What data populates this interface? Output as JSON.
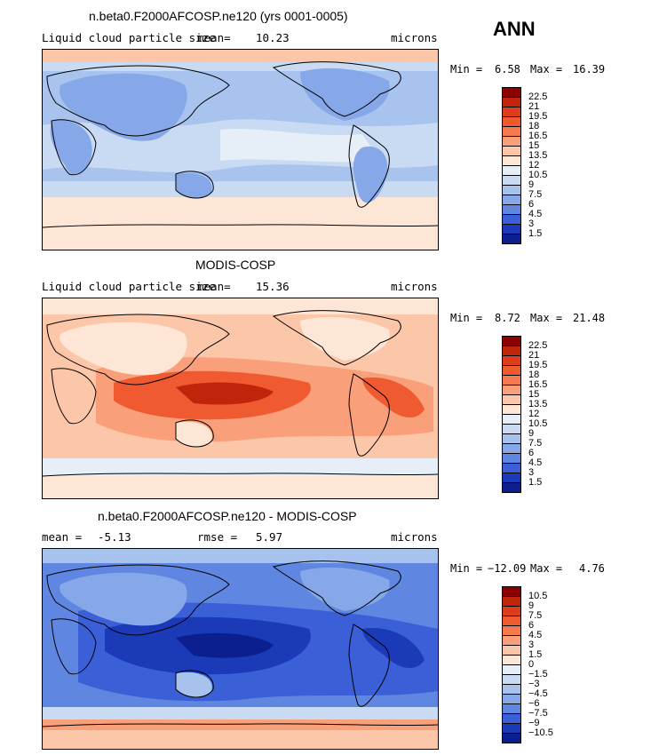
{
  "season": "ANN",
  "panels": [
    {
      "title": "n.beta0.F2000AFCOSP.ne120 (yrs 0001-0005)",
      "left_label": "Liquid cloud particle size",
      "mean_label": "mean=",
      "mean_value": "10.23",
      "units": "microns",
      "min_label": "Min =",
      "min_value": "6.58",
      "max_label": "Max =",
      "max_value": "16.39",
      "colorbar_levels": [
        "22.5",
        "21",
        "19.5",
        "18",
        "16.5",
        "15",
        "13.5",
        "12",
        "10.5",
        "9",
        "7.5",
        "6",
        "4.5",
        "3",
        "1.5"
      ],
      "colorbar_colors": [
        "#8b0000",
        "#c0250c",
        "#dd3d1c",
        "#ef5a30",
        "#f57a50",
        "#f9a07a",
        "#fcc6a8",
        "#fde6d6",
        "#e6eef8",
        "#c9daf3",
        "#a8c2ee",
        "#86a8e8",
        "#5f86e0",
        "#3a5fd6",
        "#1b3ab8",
        "#0c1f8f"
      ],
      "map_bg": "#a9c3ef"
    },
    {
      "title": "MODIS-COSP",
      "left_label": "Liquid cloud particle size",
      "mean_label": "mean=",
      "mean_value": "15.36",
      "units": "microns",
      "min_label": "Min =",
      "min_value": "8.72",
      "max_label": "Max =",
      "max_value": "21.48",
      "colorbar_levels": [
        "22.5",
        "21",
        "19.5",
        "18",
        "16.5",
        "15",
        "13.5",
        "12",
        "10.5",
        "9",
        "7.5",
        "6",
        "4.5",
        "3",
        "1.5"
      ],
      "colorbar_colors": [
        "#8b0000",
        "#c0250c",
        "#dd3d1c",
        "#ef5a30",
        "#f57a50",
        "#f9a07a",
        "#fcc6a8",
        "#fde6d6",
        "#e6eef8",
        "#c9daf3",
        "#a8c2ee",
        "#86a8e8",
        "#5f86e0",
        "#3a5fd6",
        "#1b3ab8",
        "#0c1f8f"
      ],
      "map_bg": "#fcc6a8"
    },
    {
      "title": "n.beta0.F2000AFCOSP.ne120 - MODIS-COSP",
      "left_label": "mean =",
      "mean_label": "",
      "mean_value": "-5.13",
      "rmse_label": "rmse =",
      "rmse_value": "5.97",
      "units": "microns",
      "min_label": "Min =",
      "min_value": "−12.09",
      "max_label": "Max =",
      "max_value": "4.76",
      "colorbar_levels": [
        "10.5",
        "9",
        "7.5",
        "6",
        "4.5",
        "3",
        "1.5",
        "0",
        "−1.5",
        "−3",
        "−4.5",
        "−6",
        "−7.5",
        "−9",
        "−10.5"
      ],
      "colorbar_colors": [
        "#8b0000",
        "#c0250c",
        "#dd3d1c",
        "#ef5a30",
        "#f57a50",
        "#f9a07a",
        "#fcc6a8",
        "#fde6d6",
        "#e6eef8",
        "#c9daf3",
        "#a8c2ee",
        "#86a8e8",
        "#5f86e0",
        "#3a5fd6",
        "#1b3ab8",
        "#0c1f8f"
      ],
      "map_bg": "#5f86e0"
    }
  ]
}
